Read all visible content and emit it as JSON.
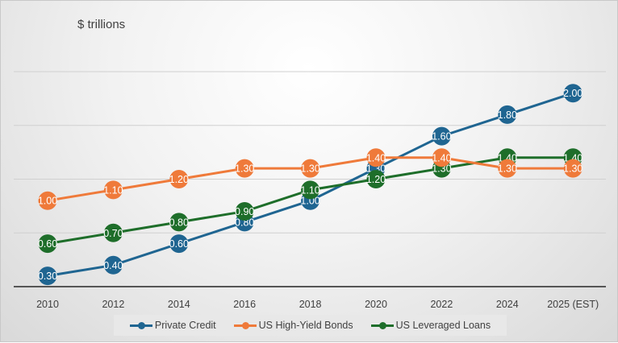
{
  "chart_data": {
    "type": "line",
    "title": "",
    "unit_label": "$ trillions",
    "categories": [
      "2010",
      "2012",
      "2014",
      "2016",
      "2018",
      "2020",
      "2022",
      "2024",
      "2025 (EST)"
    ],
    "ylim": [
      0.2,
      2.2
    ],
    "y_gridlines": [
      0.7,
      1.2,
      1.7,
      2.2
    ],
    "grid": true,
    "legend_position": "bottom",
    "series": [
      {
        "name": "Private Credit",
        "color": "#1f6591",
        "values": [
          0.3,
          0.4,
          0.6,
          0.8,
          1.0,
          1.3,
          1.6,
          1.8,
          2.0
        ]
      },
      {
        "name": "US Leveraged Loans",
        "color": "#1e6e2a",
        "values": [
          0.6,
          0.7,
          0.8,
          0.9,
          1.1,
          1.2,
          1.3,
          1.4,
          1.4
        ]
      },
      {
        "name": "US High-Yield Bonds",
        "color": "#ef7a3a",
        "values": [
          1.0,
          1.1,
          1.2,
          1.3,
          1.3,
          1.4,
          1.4,
          1.3,
          1.3
        ]
      }
    ],
    "legend_order": [
      0,
      2,
      1
    ]
  }
}
